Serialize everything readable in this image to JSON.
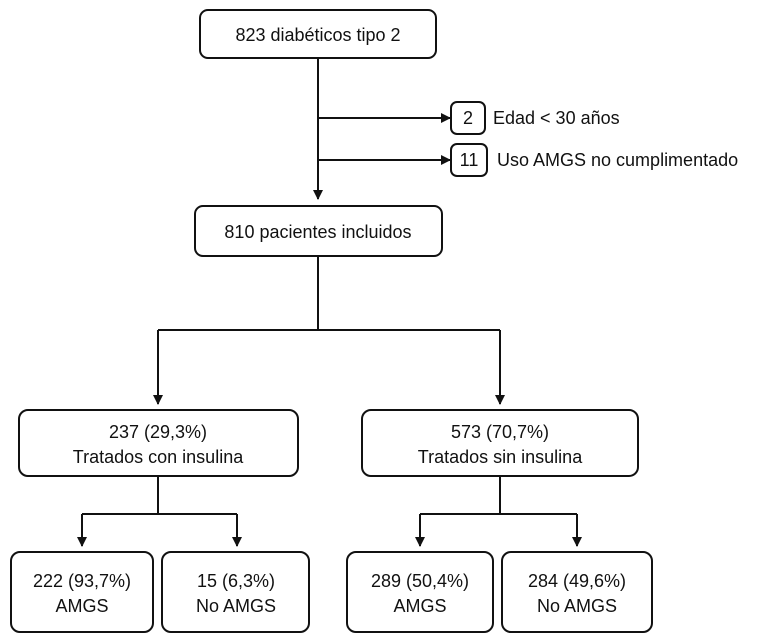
{
  "nodes": {
    "root": {
      "label": "823 diabéticos tipo 2"
    },
    "excl_age": {
      "count": "2",
      "label": "Edad < 30 años"
    },
    "excl_amgs": {
      "count": "11",
      "label": "Uso AMGS no cumplimentado"
    },
    "included": {
      "label": "810 pacientes incluidos"
    },
    "insulin": {
      "line1": "237 (29,3%)",
      "line2": "Tratados con insulina"
    },
    "no_insulin": {
      "line1": "573 (70,7%)",
      "line2": "Tratados sin insulina"
    },
    "ins_amgs": {
      "line1": "222 (93,7%)",
      "line2": "AMGS"
    },
    "ins_no_amgs": {
      "line1": "15 (6,3%)",
      "line2": "No AMGS"
    },
    "noins_amgs": {
      "line1": "289 (50,4%)",
      "line2": "AMGS"
    },
    "noins_no_amgs": {
      "line1": "284 (49,6%)",
      "line2": "No AMGS"
    }
  }
}
